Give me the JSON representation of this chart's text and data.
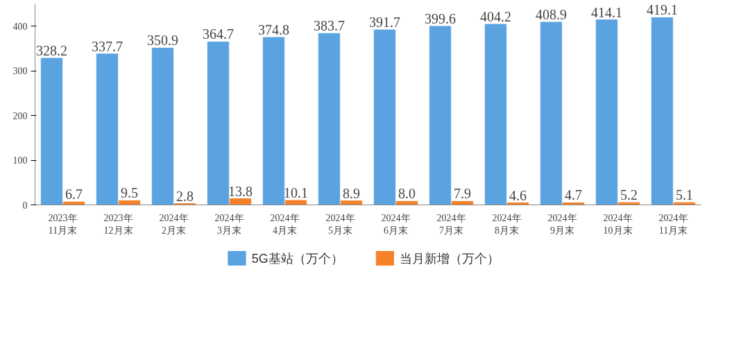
{
  "chart_data": {
    "type": "bar",
    "categories": [
      "2023年\n11月末",
      "2023年\n12月末",
      "2024年\n2月末",
      "2024年\n3月末",
      "2024年\n4月末",
      "2024年\n5月末",
      "2024年\n6月末",
      "2024年\n7月末",
      "2024年\n8月末",
      "2024年\n9月末",
      "2024年\n10月末",
      "2024年\n11月末"
    ],
    "series": [
      {
        "name": "5G基站（万个）",
        "color": "#5ba3e0",
        "values": [
          328.2,
          337.7,
          350.9,
          364.7,
          374.8,
          383.7,
          391.7,
          399.6,
          404.2,
          408.9,
          414.1,
          419.1
        ],
        "value_labels": [
          "328.2",
          "337.7",
          "350.9",
          "364.7",
          "374.8",
          "383.7",
          "391.7",
          "399.6",
          "404.2",
          "408.9",
          "414.1",
          "419.1"
        ]
      },
      {
        "name": "当月新增（万个）",
        "color": "#f5822a",
        "values": [
          6.7,
          9.5,
          2.8,
          13.8,
          10.1,
          8.9,
          8.0,
          7.9,
          4.6,
          4.7,
          5.2,
          5.1
        ],
        "value_labels": [
          "6.7",
          "9.5",
          "2.8",
          "13.8",
          "10.1",
          "8.9",
          "8.0",
          "7.9",
          "4.6",
          "4.7",
          "5.2",
          "5.1"
        ]
      }
    ],
    "ylim": [
      0,
      450
    ],
    "yticks": [
      0,
      100,
      200,
      300,
      400
    ],
    "grid": false,
    "legend": "bottom"
  }
}
